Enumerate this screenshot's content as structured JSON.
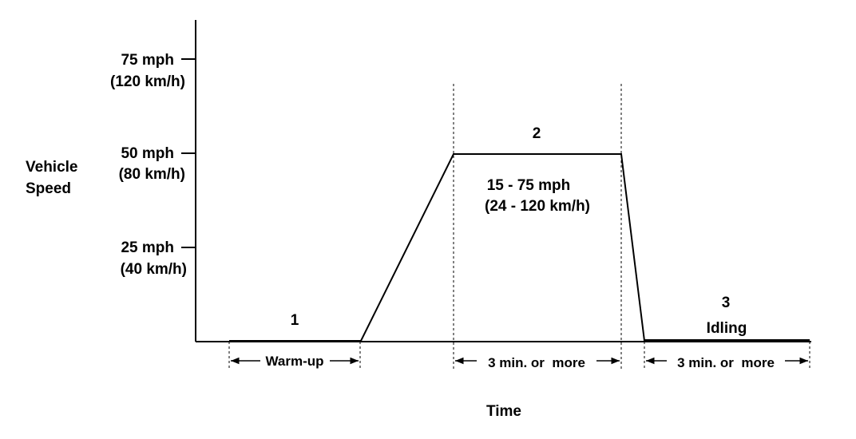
{
  "y_axis": {
    "label_line1": "Vehicle",
    "label_line2": "Speed",
    "ticks": [
      {
        "mph": "75 mph",
        "kmh": "(120 km/h)",
        "value": 75
      },
      {
        "mph": "50 mph",
        "kmh": "(80 km/h)",
        "value": 50
      },
      {
        "mph": "25 mph",
        "kmh": "(40 km/h)",
        "value": 25
      }
    ]
  },
  "x_axis": {
    "label": "Time"
  },
  "phases": {
    "warmup": {
      "number": "1",
      "interval": "Warm-up"
    },
    "cruise": {
      "number": "2",
      "range_line1": "15 - 75 mph",
      "range_line2": "(24 - 120 km/h)",
      "interval": "3 min. or  more"
    },
    "idle": {
      "number": "3",
      "name": "Idling",
      "interval": "3 min. or  more"
    }
  },
  "colors": {
    "line": "#000000",
    "background": "#ffffff"
  }
}
